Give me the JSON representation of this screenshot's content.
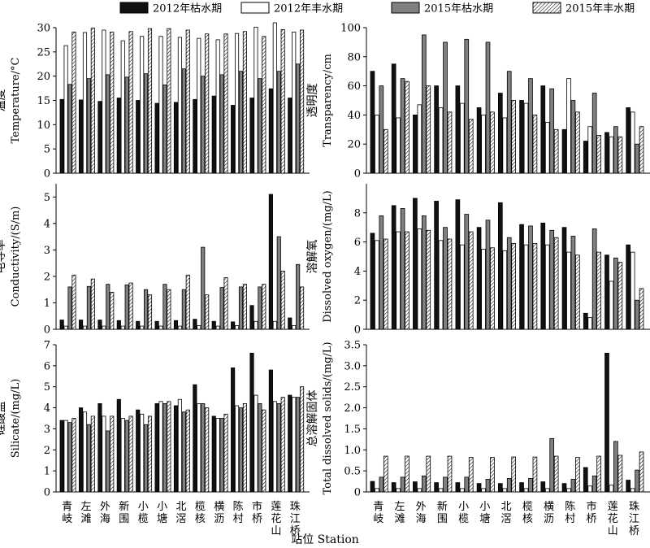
{
  "legend": [
    {
      "label": "2012年枯水期",
      "color": "#111111",
      "pattern": "solid"
    },
    {
      "label": "2012年丰水期",
      "color": "#ffffff",
      "pattern": "outline"
    },
    {
      "label": "2015年枯水期",
      "color": "#808080",
      "pattern": "solid"
    },
    {
      "label": "2015年丰水期",
      "color": "#ffffff",
      "pattern": "hatch"
    }
  ],
  "x_axis_title": "站位 Station",
  "chart_data": [
    {
      "type": "bar",
      "ylabel_cn": "温度",
      "ylabel_en": "Temperature/°C",
      "ylim": [
        0,
        30
      ],
      "yticks": [
        0,
        5,
        10,
        15,
        20,
        25,
        30
      ],
      "categories": [
        "青岐",
        "左滩",
        "外海",
        "新围",
        "小榄",
        "小塘",
        "北滘",
        "榄核",
        "横沥",
        "陈村",
        "市桥",
        "莲花山",
        "珠江桥"
      ],
      "series": [
        {
          "name": "2012年枯水期",
          "values": [
            15.2,
            15.1,
            14.8,
            15.5,
            15.0,
            14.4,
            14.6,
            15.2,
            15.9,
            14.0,
            15.5,
            17.4,
            15.5
          ]
        },
        {
          "name": "2012年丰水期",
          "values": [
            26.3,
            29.0,
            29.5,
            27.3,
            28.2,
            28.2,
            28.0,
            27.8,
            27.5,
            28.8,
            30.1,
            31.0,
            29.1
          ]
        },
        {
          "name": "2015年枯水期",
          "values": [
            18.3,
            19.5,
            20.3,
            19.8,
            20.5,
            18.2,
            21.5,
            20.0,
            20.3,
            21.0,
            19.5,
            21.0,
            22.5
          ]
        },
        {
          "name": "2015年丰水期",
          "values": [
            29.1,
            29.9,
            29.1,
            29.2,
            29.8,
            29.8,
            29.5,
            28.7,
            28.7,
            29.2,
            28.2,
            29.6,
            29.5
          ]
        }
      ]
    },
    {
      "type": "bar",
      "ylabel_cn": "透明度",
      "ylabel_en": "Transparency/cm",
      "ylim": [
        0,
        100
      ],
      "yticks": [
        0,
        20,
        40,
        60,
        80,
        100
      ],
      "categories": [
        "青岐",
        "左滩",
        "外海",
        "新围",
        "小榄",
        "小塘",
        "北滘",
        "榄核",
        "横沥",
        "陈村",
        "市桥",
        "莲花山",
        "珠江桥"
      ],
      "series": [
        {
          "name": "2012年枯水期",
          "values": [
            70,
            75,
            40,
            60,
            60,
            45,
            55,
            50,
            60,
            30,
            22,
            28,
            45
          ]
        },
        {
          "name": "2012年丰水期",
          "values": [
            40,
            38,
            47,
            45,
            48,
            40,
            38,
            48,
            35,
            65,
            32,
            25,
            42
          ]
        },
        {
          "name": "2015年枯水期",
          "values": [
            60,
            65,
            95,
            90,
            92,
            90,
            70,
            65,
            58,
            50,
            55,
            32,
            20
          ]
        },
        {
          "name": "2015年丰水期",
          "values": [
            30,
            63,
            60,
            42,
            37,
            42,
            50,
            40,
            30,
            42,
            26,
            25,
            32
          ]
        }
      ]
    },
    {
      "type": "bar",
      "ylabel_cn": "电导率",
      "ylabel_en": "Conductivity/(S/m)",
      "ylim": [
        0,
        5.5
      ],
      "yticks": [
        0,
        1,
        2,
        3,
        4,
        5
      ],
      "categories": [
        "青岐",
        "左滩",
        "外海",
        "新围",
        "小榄",
        "小塘",
        "北滘",
        "榄核",
        "横沥",
        "陈村",
        "市桥",
        "莲花山",
        "珠江桥"
      ],
      "series": [
        {
          "name": "2012年枯水期",
          "values": [
            0.35,
            0.35,
            0.35,
            0.33,
            0.3,
            0.3,
            0.33,
            0.38,
            0.3,
            0.28,
            0.9,
            5.1,
            0.43
          ]
        },
        {
          "name": "2012年丰水期",
          "values": [
            0.12,
            0.12,
            0.12,
            0.12,
            0.12,
            0.12,
            0.12,
            0.14,
            0.12,
            0.14,
            0.3,
            0.3,
            0.14
          ]
        },
        {
          "name": "2015年枯水期",
          "values": [
            1.6,
            1.62,
            1.7,
            1.68,
            1.5,
            1.7,
            1.5,
            3.1,
            1.58,
            1.6,
            1.6,
            3.5,
            2.45
          ]
        },
        {
          "name": "2015年丰水期",
          "values": [
            2.05,
            1.9,
            1.4,
            1.75,
            1.3,
            1.5,
            2.05,
            1.3,
            1.95,
            1.7,
            1.7,
            2.2,
            1.6
          ]
        }
      ]
    },
    {
      "type": "bar",
      "ylabel_cn": "溶解氧",
      "ylabel_en": "Dissolved oxygen/(mg/L)",
      "ylim": [
        0,
        10
      ],
      "yticks": [
        0,
        2,
        4,
        6,
        8
      ],
      "categories": [
        "青岐",
        "左滩",
        "外海",
        "新围",
        "小榄",
        "小塘",
        "北滘",
        "榄核",
        "横沥",
        "陈村",
        "市桥",
        "莲花山",
        "珠江桥"
      ],
      "series": [
        {
          "name": "2012年枯水期",
          "values": [
            6.6,
            8.5,
            9.0,
            8.8,
            8.9,
            7.0,
            8.7,
            7.2,
            7.3,
            7.0,
            1.1,
            5.1,
            5.8
          ]
        },
        {
          "name": "2012年丰水期",
          "values": [
            6.1,
            6.7,
            6.9,
            6.1,
            5.8,
            5.5,
            5.4,
            5.8,
            5.8,
            5.3,
            0.8,
            3.3,
            5.3
          ]
        },
        {
          "name": "2015年枯水期",
          "values": [
            7.8,
            8.3,
            7.8,
            7.0,
            7.9,
            7.5,
            6.3,
            7.1,
            6.8,
            6.4,
            6.9,
            4.9,
            2.0
          ]
        },
        {
          "name": "2015年丰水期",
          "values": [
            6.2,
            6.7,
            6.8,
            6.2,
            6.7,
            5.6,
            5.9,
            5.9,
            6.3,
            5.1,
            5.3,
            4.6,
            2.8
          ]
        }
      ]
    },
    {
      "type": "bar",
      "ylabel_cn": "硅酸盐",
      "ylabel_en": "Silicate/(mg/L)",
      "ylim": [
        0,
        7
      ],
      "yticks": [
        0,
        1,
        2,
        3,
        4,
        5,
        6,
        7
      ],
      "categories": [
        "青岐",
        "左滩",
        "外海",
        "新围",
        "小榄",
        "小塘",
        "北滘",
        "榄核",
        "横沥",
        "陈村",
        "市桥",
        "莲花山",
        "珠江桥"
      ],
      "series": [
        {
          "name": "2012年枯水期",
          "values": [
            3.4,
            4.0,
            4.2,
            4.4,
            3.9,
            4.2,
            4.1,
            5.1,
            3.6,
            5.9,
            6.6,
            5.8,
            4.6
          ]
        },
        {
          "name": "2012年丰水期",
          "values": [
            3.4,
            3.8,
            3.6,
            3.5,
            3.7,
            4.3,
            4.4,
            4.2,
            3.5,
            4.1,
            4.6,
            4.3,
            4.5
          ]
        },
        {
          "name": "2015年枯水期",
          "values": [
            3.3,
            3.2,
            2.9,
            3.4,
            3.2,
            4.2,
            3.8,
            4.2,
            3.5,
            4.0,
            4.2,
            4.2,
            4.5
          ]
        },
        {
          "name": "2015年丰水期",
          "values": [
            3.5,
            3.6,
            3.6,
            3.6,
            3.6,
            4.3,
            3.9,
            4.0,
            3.7,
            4.2,
            3.9,
            4.5,
            5.0
          ]
        }
      ]
    },
    {
      "type": "bar",
      "ylabel_cn": "总溶解固体",
      "ylabel_en": "Total dissolved solids/(mg/L)",
      "ylim": [
        0,
        3.5
      ],
      "yticks": [
        0,
        0.5,
        1.0,
        1.5,
        2.0,
        2.5,
        3.0,
        3.5
      ],
      "categories": [
        "青岐",
        "左滩",
        "外海",
        "新围",
        "小榄",
        "小塘",
        "北滘",
        "榄核",
        "横沥",
        "陈村",
        "市桥",
        "莲花山",
        "珠江桥"
      ],
      "series": [
        {
          "name": "2012年枯水期",
          "values": [
            0.25,
            0.22,
            0.24,
            0.22,
            0.22,
            0.2,
            0.2,
            0.22,
            0.24,
            0.2,
            0.58,
            3.3,
            0.28
          ]
        },
        {
          "name": "2012年丰水期",
          "values": [
            0.08,
            0.08,
            0.08,
            0.08,
            0.08,
            0.08,
            0.08,
            0.08,
            0.08,
            0.08,
            0.14,
            0.16,
            0.08
          ]
        },
        {
          "name": "2015年枯水期",
          "values": [
            0.35,
            0.35,
            0.38,
            0.35,
            0.35,
            0.3,
            0.32,
            0.32,
            1.27,
            0.3,
            0.38,
            1.2,
            0.52
          ]
        },
        {
          "name": "2015年丰水期",
          "values": [
            0.85,
            0.85,
            0.85,
            0.85,
            0.82,
            0.82,
            0.83,
            0.83,
            0.85,
            0.82,
            0.85,
            0.87,
            0.95
          ]
        }
      ]
    }
  ]
}
